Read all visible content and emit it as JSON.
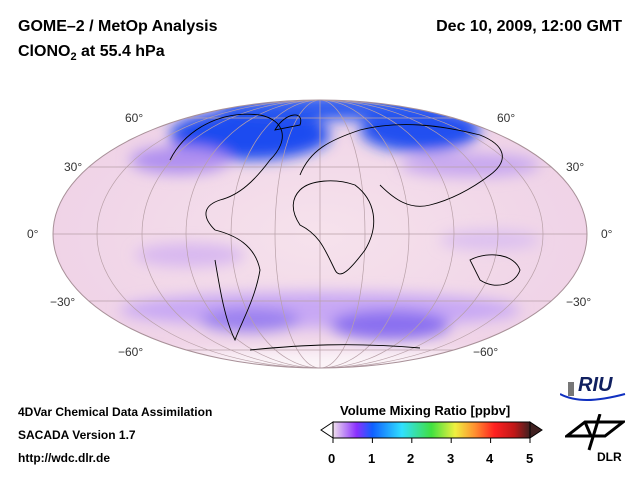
{
  "header": {
    "title": "GOME–2 / MetOp Analysis",
    "species": "ClONO",
    "species_sub": "2",
    "species_suffix": " at 55.4 hPa",
    "datetime": "Dec 10, 2009, 12:00 GMT"
  },
  "map": {
    "lat_labels": [
      "60°",
      "30°",
      "0°",
      "−30°",
      "−60°"
    ]
  },
  "footer": {
    "line1": "4DVar Chemical Data Assimilation",
    "line2": "SACADA Version 1.7",
    "line3": "http://wdc.dlr.de"
  },
  "colorbar": {
    "title": "Volume Mixing Ratio [ppbv]",
    "ticks": [
      "0",
      "1",
      "2",
      "3",
      "4",
      "5"
    ],
    "range": [
      0,
      5
    ],
    "colors": [
      "#f0e0ec",
      "#7a2cff",
      "#1060ff",
      "#30e0ff",
      "#40e040",
      "#f0f040",
      "#ff9030",
      "#ff2020",
      "#c01818",
      "#402020"
    ]
  },
  "logos": {
    "riu": "RIU",
    "dlr": "DLR"
  }
}
